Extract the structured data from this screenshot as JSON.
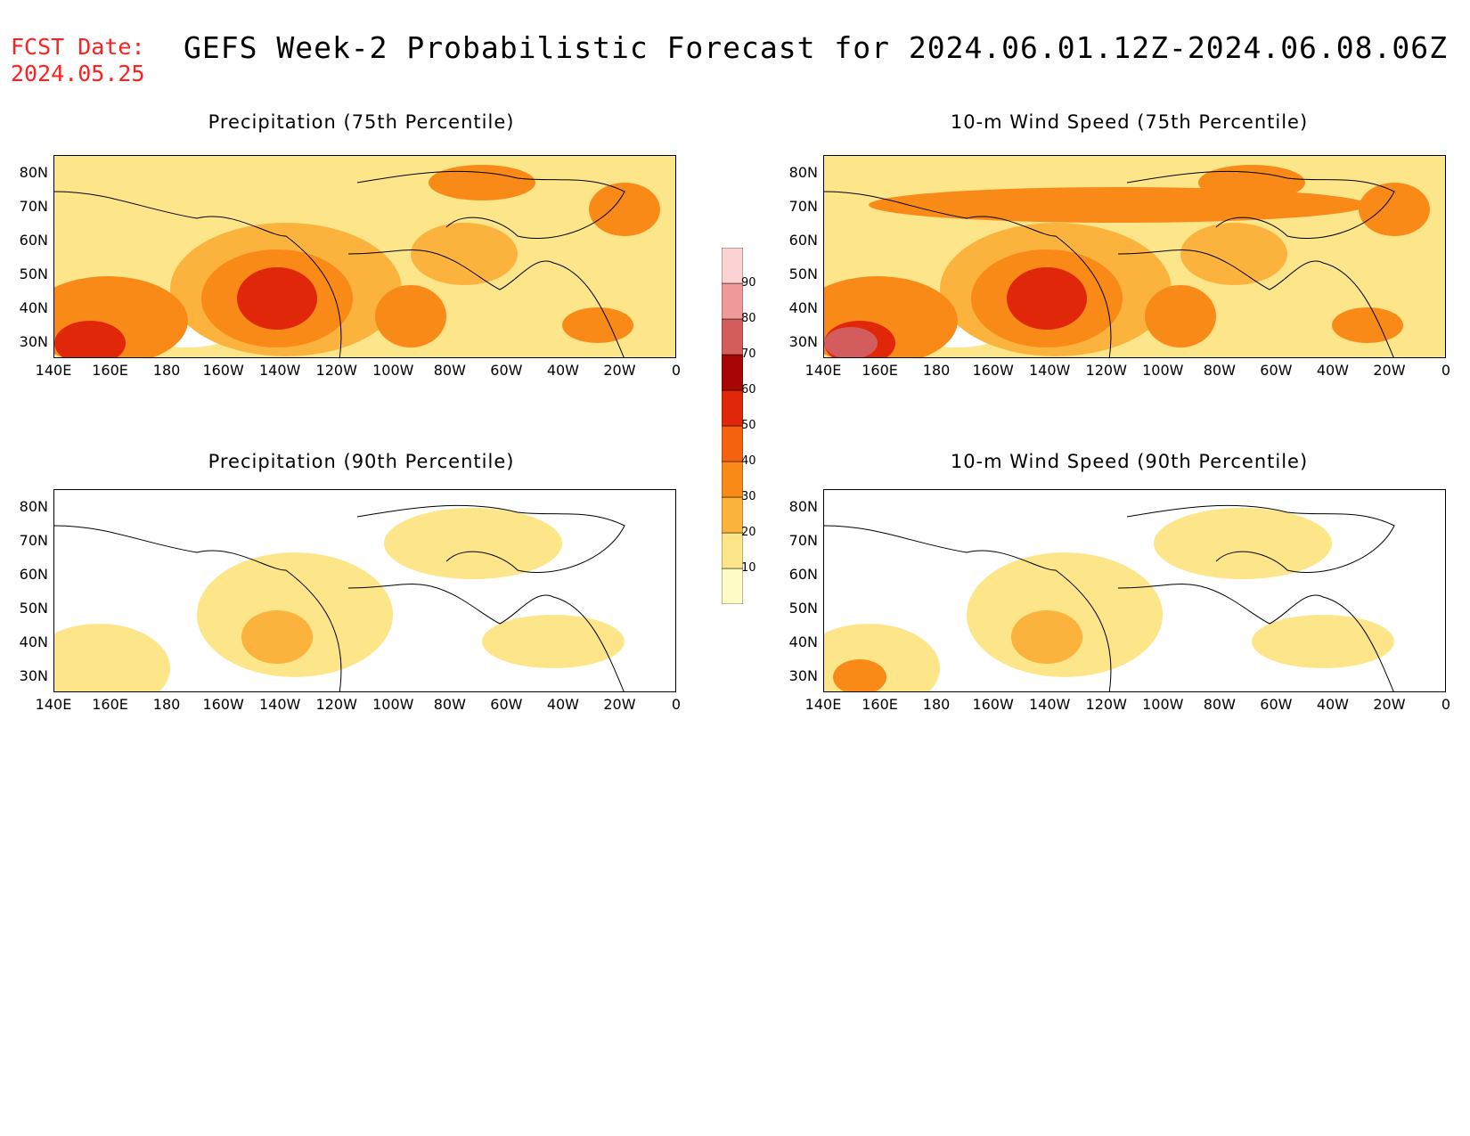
{
  "header": {
    "fcst_label": "FCST Date:",
    "fcst_date": "2024.05.25",
    "title": "GEFS Week-2 Probabilistic Forecast for 2024.06.01.12Z-2024.06.08.06Z"
  },
  "panels": [
    {
      "id": "precip75",
      "title": "Precipitation (75th Percentile)",
      "intensity": 0.9
    },
    {
      "id": "wind75",
      "title": "10-m Wind Speed (75th Percentile)",
      "intensity": 1.0
    },
    {
      "id": "precip90",
      "title": "Precipitation (90th Percentile)",
      "intensity": 0.3
    },
    {
      "id": "wind90",
      "title": "10-m Wind Speed (90th Percentile)",
      "intensity": 0.45
    }
  ],
  "axes": {
    "lat_ticks": [
      "80N",
      "70N",
      "60N",
      "50N",
      "40N",
      "30N"
    ],
    "lon_ticks": [
      "140E",
      "160E",
      "180",
      "160W",
      "140W",
      "120W",
      "100W",
      "80W",
      "60W",
      "40W",
      "20W",
      "0"
    ]
  },
  "colorbar": {
    "levels": [
      "10",
      "20",
      "30",
      "40",
      "50",
      "60",
      "70",
      "80",
      "90"
    ],
    "colors": [
      "#fffbc4",
      "#fde68a",
      "#fbb33d",
      "#f98a18",
      "#f46210",
      "#e0270a",
      "#a80505",
      "#d35c5c",
      "#ef9a9a",
      "#fbd3d3"
    ]
  }
}
